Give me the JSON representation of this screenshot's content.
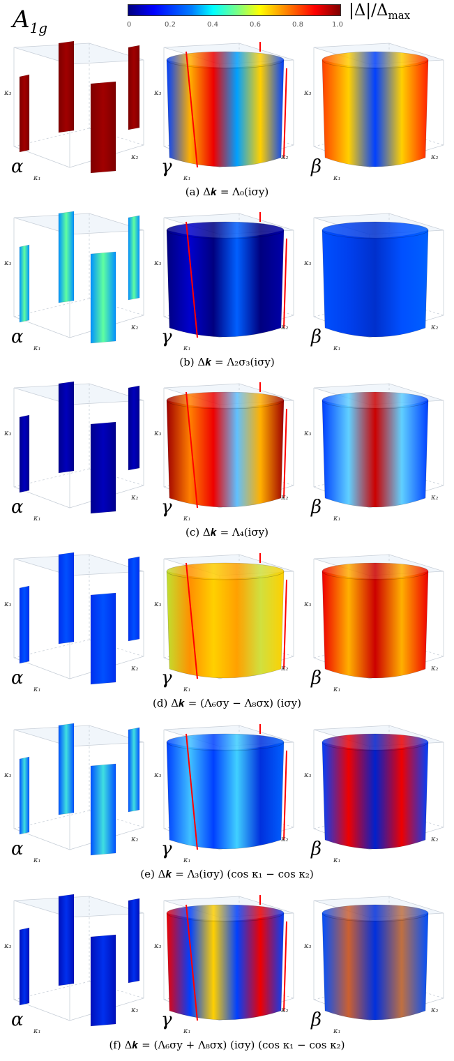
{
  "header": {
    "irrep": "A",
    "irrep_sub": "1g",
    "colorbar_ticks": [
      "0",
      "0.2",
      "0.4",
      "0.6",
      "0.8",
      "1.0"
    ],
    "colorbar_label": "|Δ|/Δ",
    "colorbar_label_sub": "max"
  },
  "axes": {
    "k1": "κ₁",
    "k2": "κ₂",
    "k3": "κ₃"
  },
  "bands": [
    "α",
    "γ",
    "β"
  ],
  "colors": {
    "dark_blue": "#00007f",
    "blue": "#0033ff",
    "cyan": "#00e0ff",
    "yellow": "#ffe000",
    "red": "#ee0000",
    "dark_red": "#7f0000",
    "red_line": "#ff0000"
  },
  "panels": [
    {
      "caption": "(a) Δ𝒌 = Λ₀(iσy)"
    },
    {
      "caption": "(b) Δ𝒌 = Λ₂σ₃(iσy)"
    },
    {
      "caption": "(c) Δ𝒌 = Λ₄(iσy)"
    },
    {
      "caption": "(d) Δ𝒌 = (Λ₆σy − Λ₈σx) (iσy)"
    },
    {
      "caption": "(e) Δ𝒌 = Λ₃(iσy) (cos κ₁ − cos κ₂)"
    },
    {
      "caption": "(f) Δ𝒌 = (Λ₆σy + Λ₈σx) (iσy) (cos κ₁ − cos κ₂)"
    }
  ]
}
